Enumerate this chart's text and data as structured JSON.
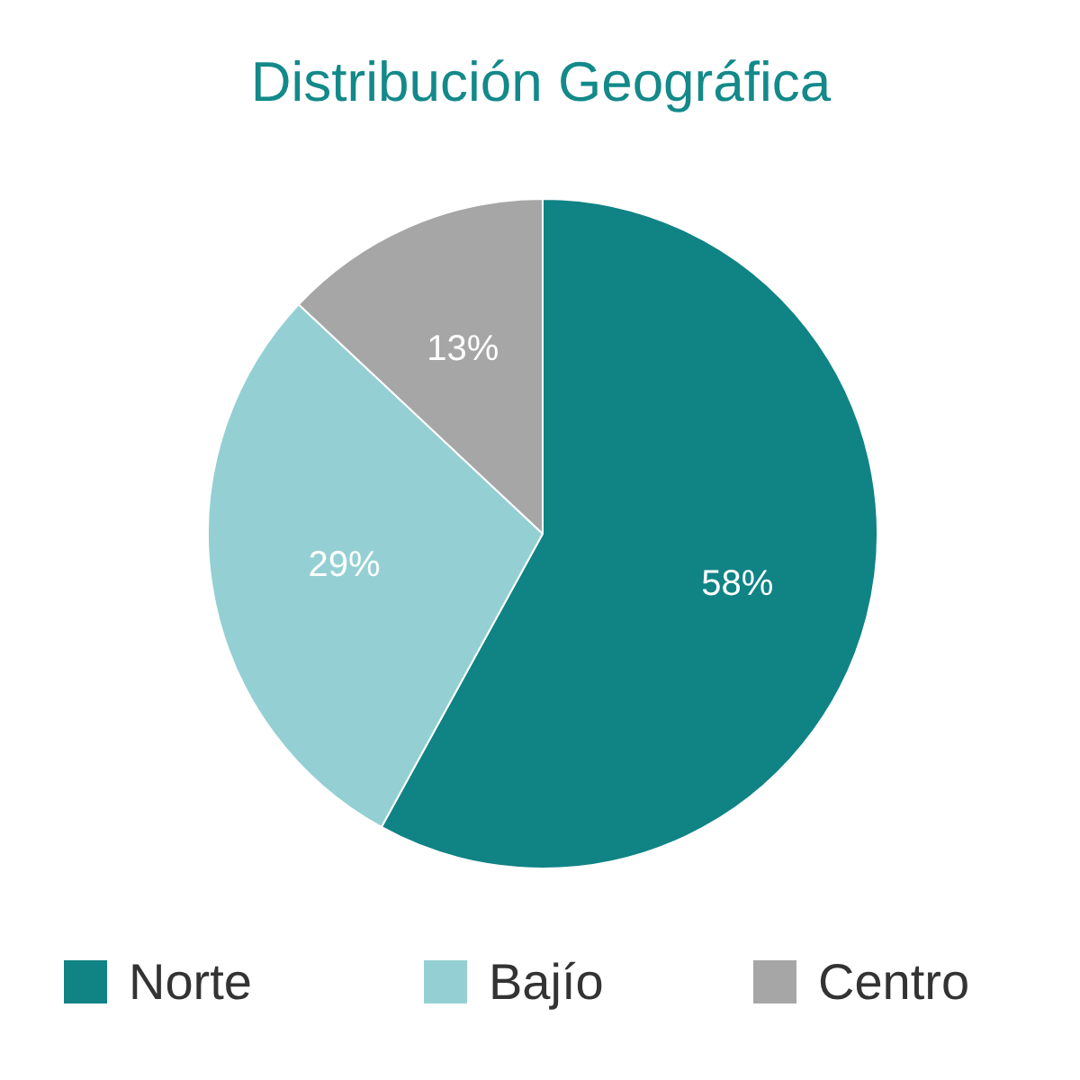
{
  "chart_data": {
    "type": "pie",
    "title": "Distribución Geográfica",
    "categories": [
      "Norte",
      "Bajío",
      "Centro"
    ],
    "values": [
      58,
      29,
      13
    ],
    "colors": [
      "#108385",
      "#94d0d3",
      "#a6a6a6"
    ],
    "value_labels": [
      "58%",
      "29%",
      "13%"
    ],
    "legend": "bottom"
  }
}
